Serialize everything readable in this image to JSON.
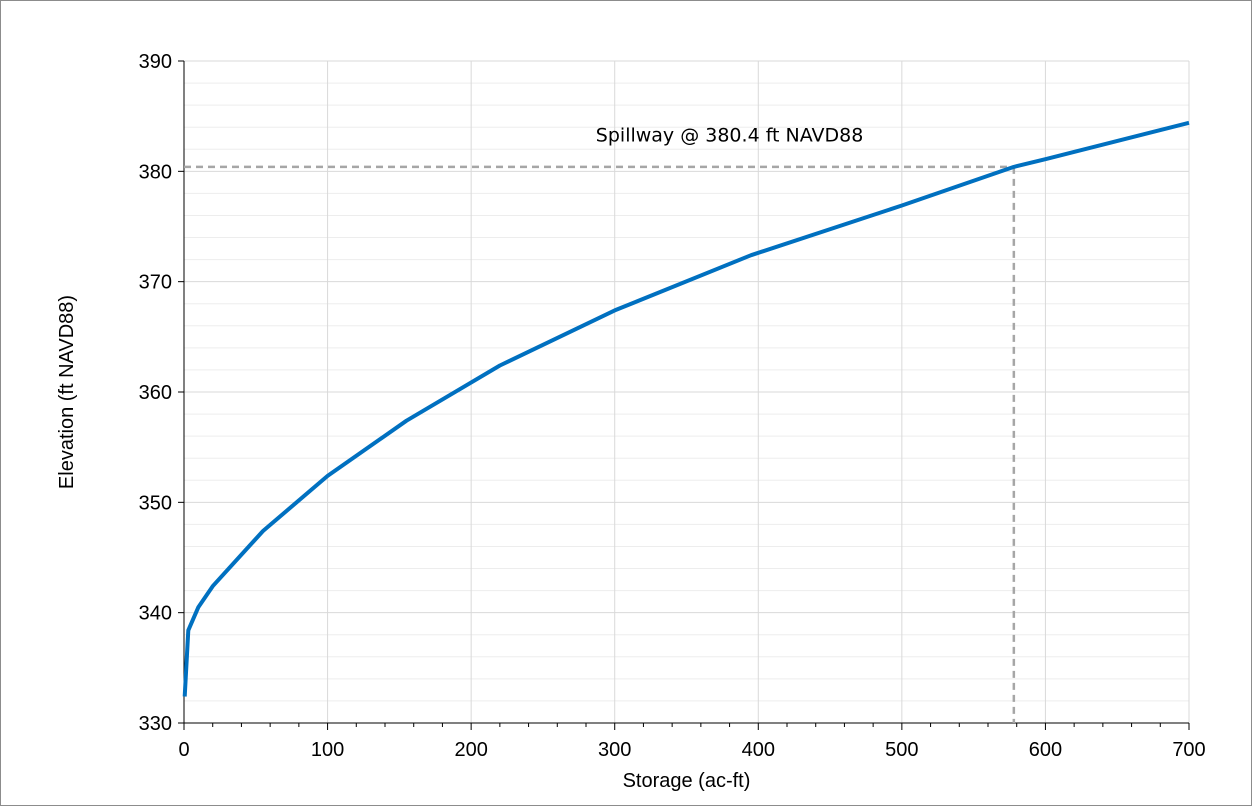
{
  "chart_data": {
    "type": "line",
    "title": "",
    "xlabel": "Storage (ac-ft)",
    "ylabel": "Elevation (ft NAVD88)",
    "xlim": [
      0,
      700
    ],
    "ylim": [
      330,
      390
    ],
    "x_ticks": [
      0,
      100,
      200,
      300,
      400,
      500,
      600,
      700
    ],
    "y_ticks": [
      330,
      340,
      350,
      360,
      370,
      380,
      390
    ],
    "x_minor_step": 20,
    "y_minor_step": 2,
    "grid": true,
    "legend": "none",
    "series": [
      {
        "color": "#0070C0",
        "x": [
          0.5,
          3,
          10,
          20,
          55,
          100,
          155,
          220,
          300,
          395,
          500,
          578,
          600,
          700
        ],
        "y": [
          332.4,
          338.4,
          340.5,
          342.4,
          347.4,
          352.4,
          357.4,
          362.4,
          367.4,
          372.4,
          376.9,
          380.4,
          381.1,
          384.4
        ]
      }
    ],
    "reference_lines": {
      "color": "#A6A6A6",
      "horizontal_y": 380.4,
      "vertical_x": 578
    },
    "annotation": {
      "text": "Spillway @ 380.4 ft NAVD88",
      "x": 380,
      "y": 382.7
    }
  }
}
